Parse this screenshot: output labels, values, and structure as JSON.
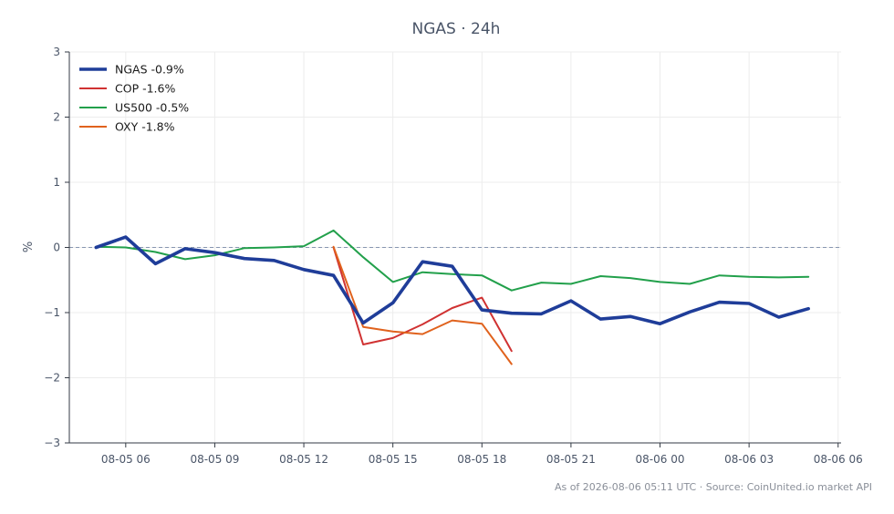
{
  "chart_data": {
    "type": "line",
    "title": "NGAS · 24h",
    "xlabel": "",
    "ylabel": "%",
    "ylim": [
      -3,
      3
    ],
    "yticks": [
      3,
      2,
      1,
      0,
      -1,
      -2,
      -3
    ],
    "ytick_labels": [
      "3",
      "2",
      "1",
      "0",
      "−1",
      "−2",
      "−3"
    ],
    "xlim": [
      4.1,
      30.1
    ],
    "xticks": [
      6,
      9,
      12,
      15,
      18,
      21,
      24,
      27,
      30
    ],
    "xtick_labels": [
      "08-05 06",
      "08-05 09",
      "08-05 12",
      "08-05 15",
      "08-05 18",
      "08-05 21",
      "08-06 00",
      "08-06 03",
      "08-06 06"
    ],
    "grid": true,
    "zero_line": true,
    "legend_position": "top-left",
    "series": [
      {
        "name": "NGAS -0.9%",
        "color": "#1f3d99",
        "primary": true,
        "x": [
          5,
          6,
          7,
          8,
          9,
          10,
          11,
          12,
          13,
          14,
          15,
          16,
          17,
          18,
          19,
          20,
          21,
          22,
          23,
          24,
          25,
          26,
          27,
          28,
          29
        ],
        "y": [
          0.0,
          0.16,
          -0.25,
          -0.02,
          -0.08,
          -0.17,
          -0.2,
          -0.34,
          -0.43,
          -1.16,
          -0.85,
          -0.22,
          -0.29,
          -0.96,
          -1.01,
          -1.02,
          -0.82,
          -1.1,
          -1.06,
          -1.17,
          -0.99,
          -0.84,
          -0.86,
          -1.07,
          -0.94
        ]
      },
      {
        "name": "COP -1.6%",
        "color": "#d03232",
        "x": [
          13,
          14,
          15,
          16,
          17,
          18,
          19
        ],
        "y": [
          0.0,
          -1.49,
          -1.39,
          -1.18,
          -0.93,
          -0.77,
          -1.59
        ]
      },
      {
        "name": "US500 -0.5%",
        "color": "#22a04b",
        "x": [
          5,
          6,
          7,
          8,
          9,
          10,
          11,
          12,
          13,
          14,
          15,
          16,
          17,
          18,
          19,
          20,
          21,
          22,
          23,
          24,
          25,
          26,
          27,
          28,
          29
        ],
        "y": [
          0.01,
          0.0,
          -0.07,
          -0.18,
          -0.12,
          -0.01,
          0.0,
          0.02,
          0.26,
          -0.15,
          -0.53,
          -0.38,
          -0.41,
          -0.43,
          -0.66,
          -0.54,
          -0.56,
          -0.44,
          -0.47,
          -0.53,
          -0.56,
          -0.43,
          -0.45,
          -0.46,
          -0.45
        ]
      },
      {
        "name": "OXY -1.8%",
        "color": "#e0621d",
        "x": [
          13,
          14,
          15,
          16,
          17,
          18,
          19
        ],
        "y": [
          0.01,
          -1.22,
          -1.29,
          -1.33,
          -1.12,
          -1.17,
          -1.79
        ]
      }
    ],
    "footer": "As of 2026-08-06 05:11 UTC · Source: CoinUnited.io market API"
  }
}
